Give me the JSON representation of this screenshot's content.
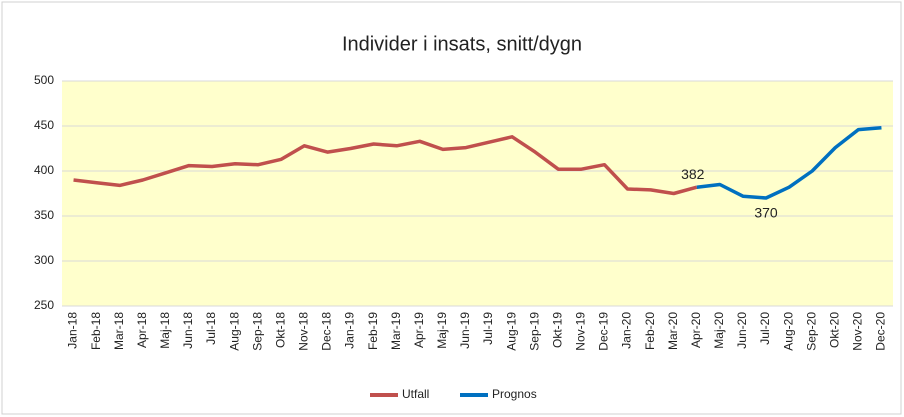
{
  "chart_data": {
    "type": "line",
    "title": "Individer i insats, snitt/dygn",
    "categories": [
      "Jan-18",
      "Feb-18",
      "Mar-18",
      "Apr-18",
      "Maj-18",
      "Jun-18",
      "Jul-18",
      "Aug-18",
      "Sep-18",
      "Okt-18",
      "Nov-18",
      "Dec-18",
      "Jan-19",
      "Feb-19",
      "Mar-19",
      "Apr-19",
      "Maj-19",
      "Jun-19",
      "Jul-19",
      "Aug-19",
      "Sep-19",
      "Okt-19",
      "Nov-19",
      "Dec-19",
      "Jan-20",
      "Feb-20",
      "Mar-20",
      "Apr-20",
      "Maj-20",
      "Jun-20",
      "Jul-20",
      "Aug-20",
      "Sep-20",
      "Okt-20",
      "Nov-20",
      "Dec-20"
    ],
    "series": [
      {
        "name": "Utfall",
        "color": "#c0504d",
        "values": [
          390,
          387,
          384,
          390,
          398,
          406,
          405,
          408,
          407,
          413,
          428,
          421,
          425,
          430,
          428,
          433,
          424,
          426,
          432,
          438,
          421,
          402,
          402,
          407,
          380,
          379,
          375,
          382,
          null,
          null,
          null,
          null,
          null,
          null,
          null,
          null
        ]
      },
      {
        "name": "Prognos",
        "color": "#0070c0",
        "values": [
          null,
          null,
          null,
          null,
          null,
          null,
          null,
          null,
          null,
          null,
          null,
          null,
          null,
          null,
          null,
          null,
          null,
          null,
          null,
          null,
          null,
          null,
          null,
          null,
          null,
          null,
          null,
          382,
          385,
          372,
          370,
          382,
          400,
          426,
          446,
          448
        ]
      }
    ],
    "labeled_points": [
      [
        1,
        27
      ],
      [
        1,
        30
      ]
    ],
    "ylim": [
      250,
      500
    ],
    "yticks": [
      250,
      300,
      350,
      400,
      450,
      500
    ],
    "grid": true,
    "legend": "bottom",
    "plot_background": "#ffffcc"
  }
}
